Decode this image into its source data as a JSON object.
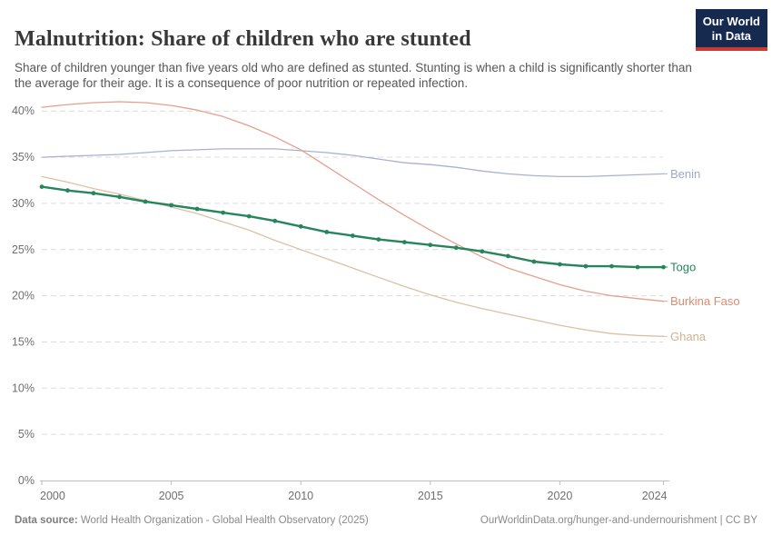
{
  "header": {
    "title": "Malnutrition: Share of children who are stunted",
    "subtitle": "Share of children younger than five years old who are defined as stunted. Stunting is when a child is significantly shorter than the average for their age. It is a consequence of poor nutrition or repeated infection.",
    "logo": {
      "line1": "Our World",
      "line2": "in Data",
      "bg_color": "#16294e",
      "stripe_color": "#cc3b33"
    }
  },
  "chart_data": {
    "type": "line",
    "title": "Malnutrition: Share of children who are stunted",
    "xlabel": "",
    "ylabel": "",
    "xlim": [
      2000,
      2024
    ],
    "ylim": [
      0,
      40
    ],
    "grid": "horizontal-dashed",
    "legend_position": "right-edge-labels",
    "xticks": [
      2000,
      2005,
      2010,
      2015,
      2020,
      2024
    ],
    "xtick_labels": [
      "2000",
      "2005",
      "2010",
      "2015",
      "2020",
      "2024"
    ],
    "yticks": [
      0,
      5,
      10,
      15,
      20,
      25,
      30,
      35,
      40
    ],
    "ytick_labels": [
      "0%",
      "5%",
      "10%",
      "15%",
      "20%",
      "25%",
      "30%",
      "35%",
      "40%"
    ],
    "x": [
      2000,
      2001,
      2002,
      2003,
      2004,
      2005,
      2006,
      2007,
      2008,
      2009,
      2010,
      2011,
      2012,
      2013,
      2014,
      2015,
      2016,
      2017,
      2018,
      2019,
      2020,
      2021,
      2022,
      2023,
      2024
    ],
    "series": [
      {
        "name": "Benin",
        "line_color": "#a8b1d4",
        "label_color": "#9da8ce",
        "focused": false,
        "values": [
          35.0,
          35.1,
          35.2,
          35.3,
          35.5,
          35.7,
          35.8,
          35.9,
          35.9,
          35.9,
          35.7,
          35.5,
          35.2,
          34.8,
          34.4,
          34.2,
          33.9,
          33.5,
          33.2,
          33.0,
          32.9,
          32.9,
          33.0,
          33.1,
          33.2
        ]
      },
      {
        "name": "Burkina Faso",
        "line_color": "#e5a08c",
        "label_color": "#de8b70",
        "focused": false,
        "values": [
          40.4,
          40.7,
          40.9,
          41.0,
          40.9,
          40.6,
          40.1,
          39.4,
          38.4,
          37.2,
          35.8,
          34.0,
          32.2,
          30.4,
          28.7,
          27.1,
          25.6,
          24.2,
          23.0,
          22.1,
          21.2,
          20.5,
          20.0,
          19.7,
          19.4
        ]
      },
      {
        "name": "Ghana",
        "line_color": "#dcc0a4",
        "label_color": "#d2b391",
        "focused": false,
        "values": [
          32.9,
          32.3,
          31.6,
          31.0,
          30.3,
          29.6,
          28.9,
          28.0,
          27.1,
          26.0,
          25.0,
          24.0,
          23.0,
          22.0,
          21.0,
          20.1,
          19.3,
          18.6,
          18.0,
          17.4,
          16.8,
          16.3,
          15.9,
          15.7,
          15.6
        ]
      },
      {
        "name": "Togo",
        "line_color": "#26855c",
        "label_color": "#26855c",
        "focused": true,
        "values": [
          31.8,
          31.4,
          31.1,
          30.7,
          30.2,
          29.8,
          29.4,
          29.0,
          28.6,
          28.1,
          27.5,
          26.9,
          26.5,
          26.1,
          25.8,
          25.5,
          25.2,
          24.8,
          24.3,
          23.7,
          23.4,
          23.2,
          23.2,
          23.1,
          23.1
        ]
      }
    ]
  },
  "footer": {
    "datasource_label": "Data source:",
    "datasource_text": " World Health Organization - Global Health Observatory (2025)",
    "link_text": "OurWorldinData.org/hunger-and-undernourishment | CC BY"
  }
}
